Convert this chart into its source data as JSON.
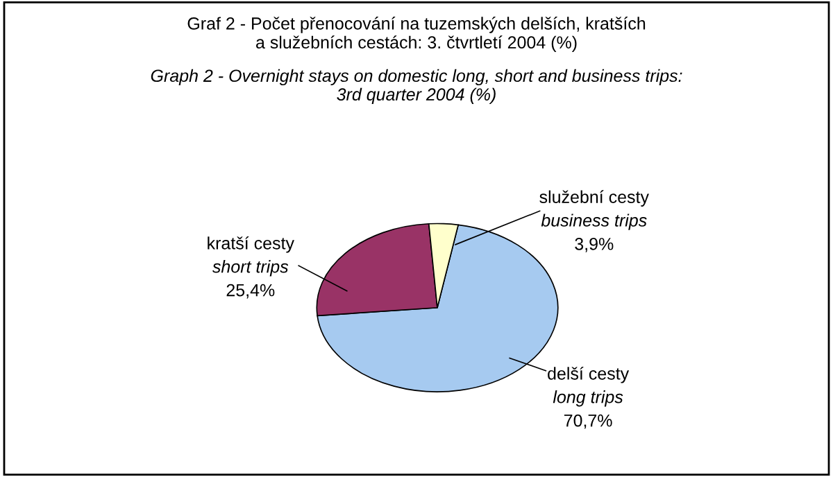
{
  "chart_data": {
    "type": "pie",
    "title": "Graf 2 - Počet přenocování na tuzemských delších, kratších\na služebních cestách: 3. čtvrtletí 2004 (%)",
    "subtitle": "Graph 2 - Overnight stays on domestic long, short and business trips:\n3rd quarter 2004 (%)",
    "categories": [
      "delší cesty\nlong trips",
      "kratší cesty\nshort trips",
      "služební cesty\nbusiness trips"
    ],
    "values": [
      70.7,
      25.4,
      3.9
    ],
    "colors": [
      "#a6caf0",
      "#993366",
      "#ffffcc"
    ],
    "value_labels": [
      "70,7%",
      "25,4%",
      "3,9%"
    ],
    "legend": false
  }
}
